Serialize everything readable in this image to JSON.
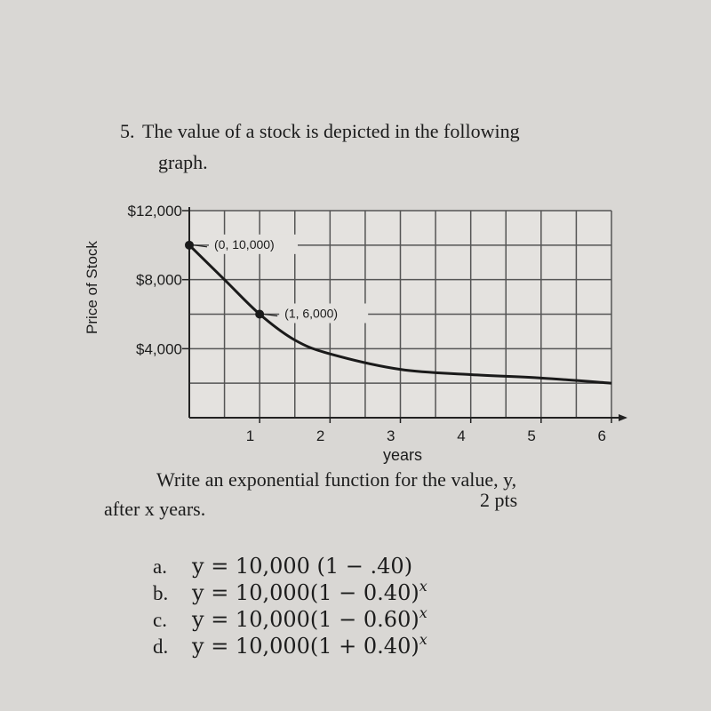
{
  "question": {
    "number": "5.",
    "text": "The value of a stock is depicted in the following",
    "text2": "graph."
  },
  "chart_data": {
    "type": "line",
    "y_label": "Price of Stock",
    "x_label": "years",
    "x": [
      0,
      0.5,
      1,
      1.5,
      2,
      3,
      4,
      5,
      6
    ],
    "values": [
      10000,
      8000,
      6000,
      4500,
      3700,
      2800,
      2500,
      2300,
      2000
    ],
    "color": "#1a1a1a",
    "xlim": [
      0,
      6
    ],
    "ylim": [
      0,
      12000
    ],
    "xticks": [
      1,
      2,
      3,
      4,
      5,
      6
    ],
    "yticks": [
      {
        "value": 4000,
        "label": "$4,000"
      },
      {
        "value": 8000,
        "label": "$8,000"
      },
      {
        "value": 12000,
        "label": "$12,000"
      }
    ],
    "xgrid": [
      0.5,
      1,
      1.5,
      2,
      2.5,
      3,
      3.5,
      4,
      4.5,
      5,
      5.5,
      6
    ],
    "ygrid": [
      2000,
      4000,
      6000,
      8000,
      10000,
      12000
    ],
    "grid": true,
    "points": [
      {
        "x": 0,
        "y": 10000,
        "label": "(0, 10,000)"
      },
      {
        "x": 1,
        "y": 6000,
        "label": "(1, 6,000)"
      }
    ]
  },
  "prompt": {
    "line1": "Write an exponential function for the value, y,",
    "line2": "after x years.",
    "points": "2 pts"
  },
  "choices": [
    {
      "letter": "a.",
      "text": "y = 10,000 (1 − .40)"
    },
    {
      "letter": "b.",
      "text": "y = 10,000(1 − 0.40)",
      "exponent": "x"
    },
    {
      "letter": "c.",
      "text": "y = 10,000(1 − 0.60)",
      "exponent": "x"
    },
    {
      "letter": "d.",
      "text": "y = 10,000(1 + 0.40)",
      "exponent": "x"
    }
  ]
}
